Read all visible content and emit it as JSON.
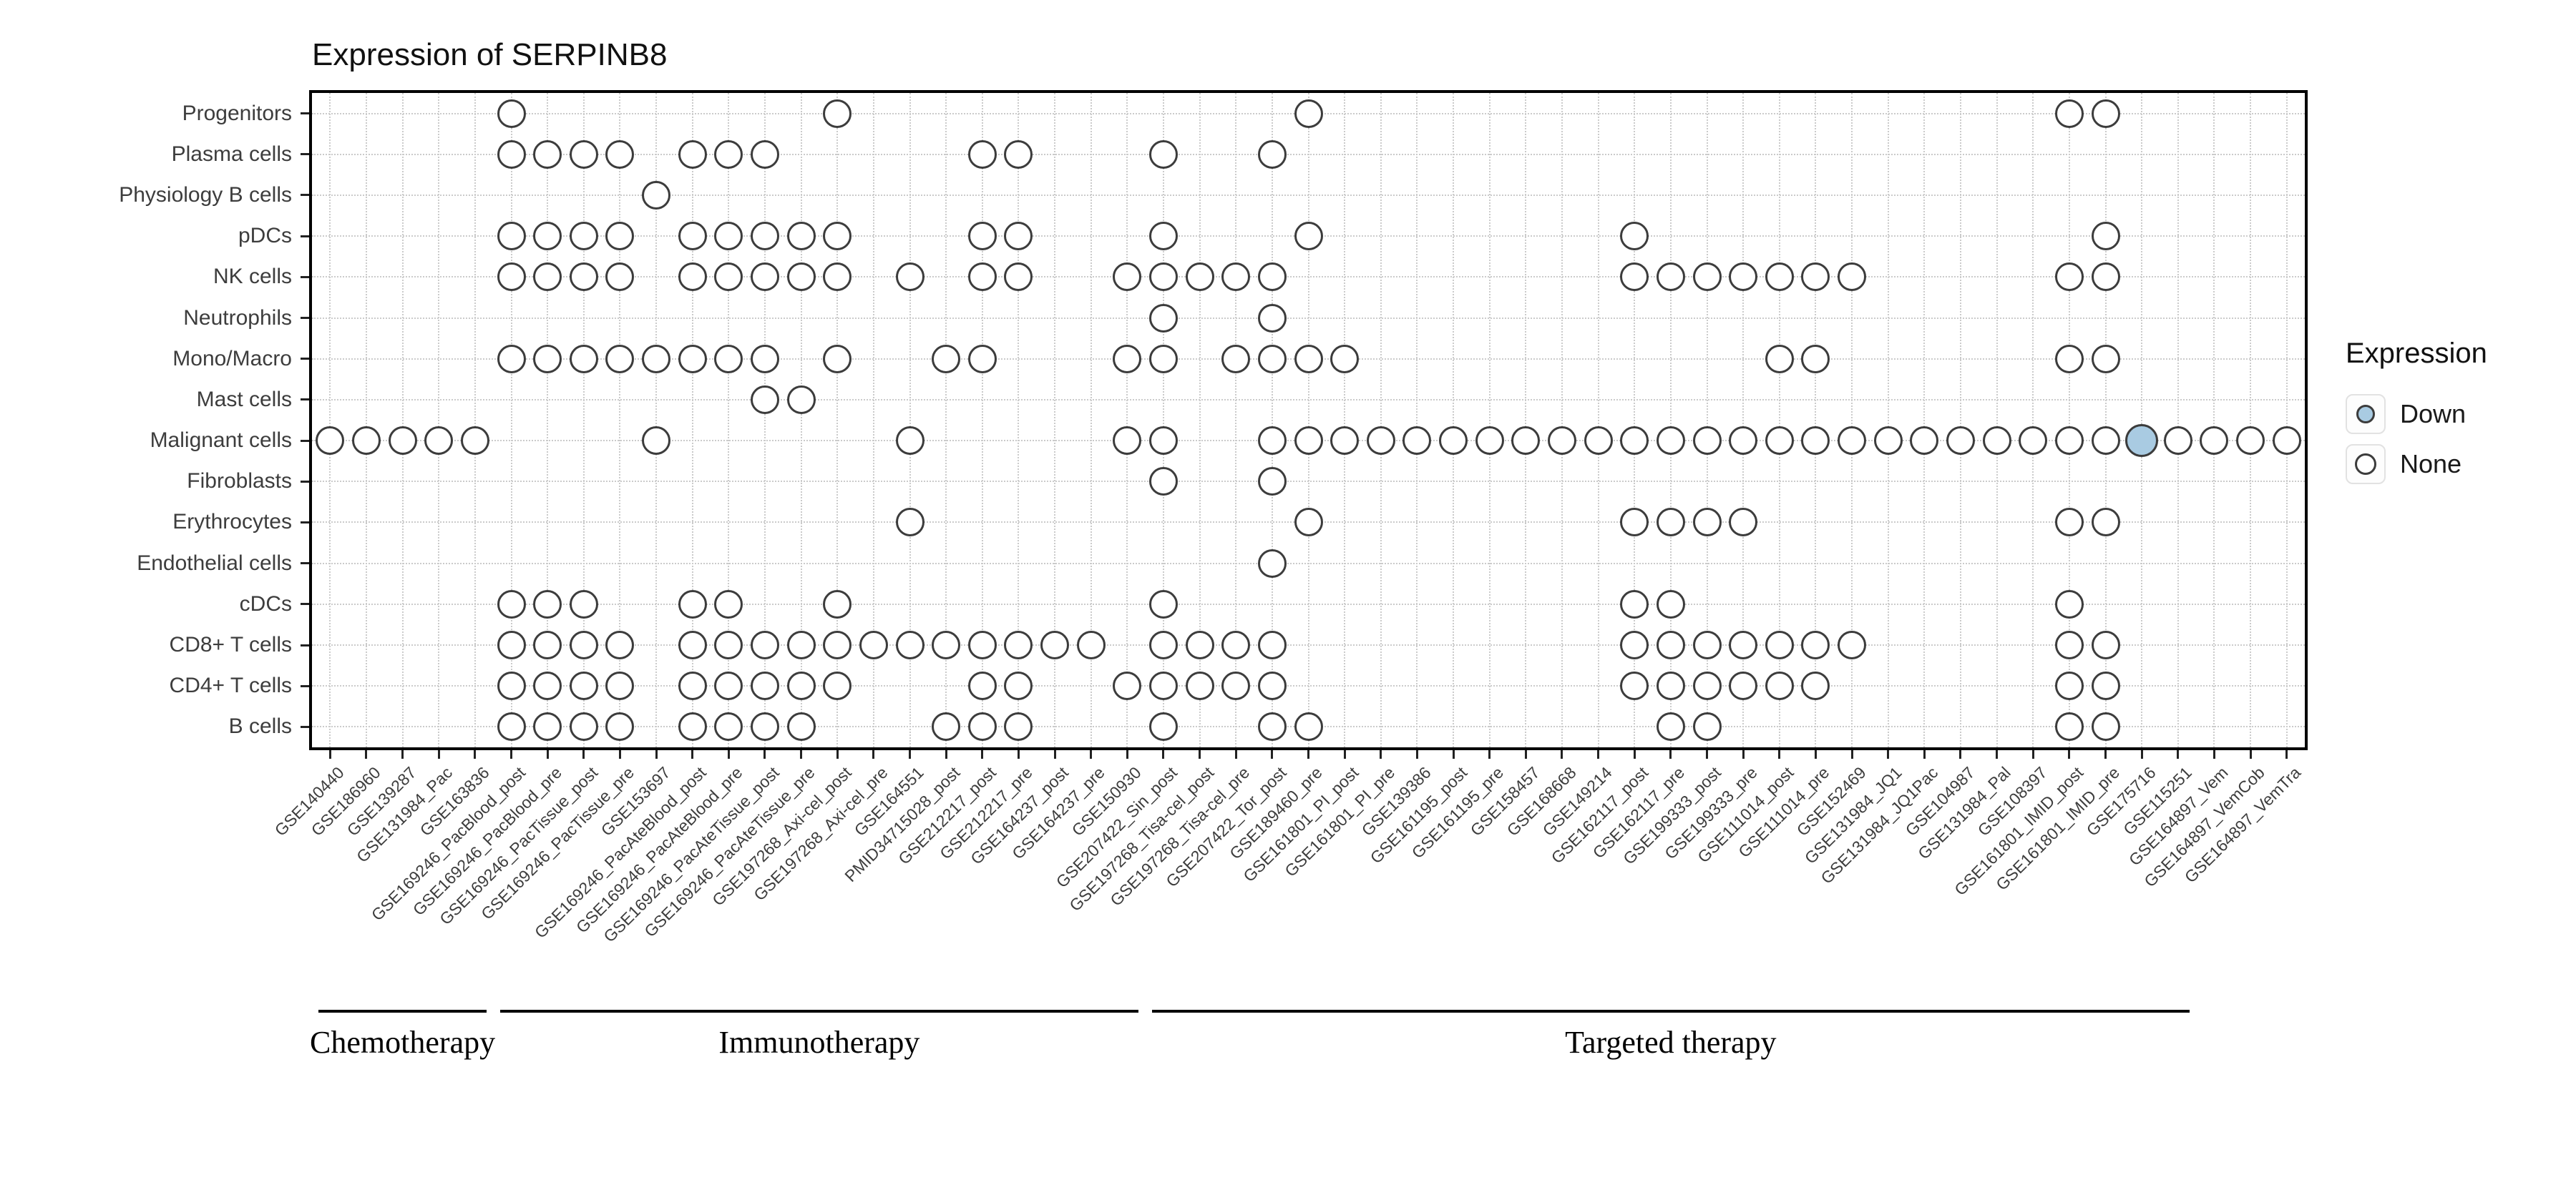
{
  "chart_data": {
    "type": "scatter",
    "title": "Expression of SERPINB8",
    "xlabel": "",
    "ylabel": "",
    "grid": true,
    "rows": [
      "Progenitors",
      "Plasma cells",
      "Physiology B cells",
      "pDCs",
      "NK cells",
      "Neutrophils",
      "Mono/Macro",
      "Mast cells",
      "Malignant cells",
      "Fibroblasts",
      "Erythrocytes",
      "Endothelial cells",
      "cDCs",
      "CD8+ T cells",
      "CD4+ T cells",
      "B cells"
    ],
    "columns": [
      "GSE140440",
      "GSE186960",
      "GSE139287",
      "GSE131984_Pac",
      "GSE163836",
      "GSE169246_PacBlood_post",
      "GSE169246_PacBlood_pre",
      "GSE169246_PacTissue_post",
      "GSE169246_PacTissue_pre",
      "GSE153697",
      "GSE169246_PacAteBlood_post",
      "GSE169246_PacAteBlood_pre",
      "GSE169246_PacAteTissue_post",
      "GSE169246_PacAteTissue_pre",
      "GSE197268_Axi-cel_post",
      "GSE197268_Axi-cel_pre",
      "GSE164551",
      "PMID34715028_post",
      "GSE212217_post",
      "GSE212217_pre",
      "GSE164237_post",
      "GSE164237_pre",
      "GSE150930",
      "GSE207422_Sin_post",
      "GSE197268_Tisa-cel_post",
      "GSE197268_Tisa-cel_pre",
      "GSE207422_Tor_post",
      "GSE189460_pre",
      "GSE161801_PI_post",
      "GSE161801_PI_pre",
      "GSE139386",
      "GSE161195_post",
      "GSE161195_pre",
      "GSE158457",
      "GSE168668",
      "GSE149214",
      "GSE162117_post",
      "GSE162117_pre",
      "GSE199333_post",
      "GSE199333_pre",
      "GSE111014_post",
      "GSE111014_pre",
      "GSE152469",
      "GSE131984_JQ1",
      "GSE131984_JQ1Pac",
      "GSE104987",
      "GSE131984_Pal",
      "GSE108397",
      "GSE161801_IMID_post",
      "GSE161801_IMID_pre",
      "GSE175716",
      "GSE115251",
      "GSE164897_Vem",
      "GSE164897_VemCob",
      "GSE164897_VemTra"
    ],
    "groups": [
      {
        "label": "Chemotherapy",
        "from": 1,
        "to": 5
      },
      {
        "label": "Immunotherapy",
        "from": 6,
        "to": 23
      },
      {
        "label": "Targeted therapy",
        "from": 24,
        "to": 52
      }
    ],
    "legend": {
      "title": "Expression",
      "position": "right",
      "items": [
        {
          "label": "Down",
          "fill": "#A9CBE2"
        },
        {
          "label": "None",
          "fill": "#FFFFFF"
        }
      ]
    },
    "colors": {
      "dot_stroke": "#3C3C3C",
      "grid": "#CBCBCB",
      "axis_text": "#3D3D3D",
      "border": "#000000"
    },
    "cells": {
      "Progenitors": {
        "none": [
          6,
          15,
          28,
          49,
          50
        ],
        "down": []
      },
      "Plasma cells": {
        "none": [
          6,
          7,
          8,
          9,
          11,
          12,
          13,
          19,
          20,
          24,
          27
        ],
        "down": []
      },
      "Physiology B cells": {
        "none": [
          10
        ],
        "down": []
      },
      "pDCs": {
        "none": [
          6,
          7,
          8,
          9,
          11,
          12,
          13,
          14,
          15,
          19,
          20,
          24,
          28,
          37,
          50
        ],
        "down": []
      },
      "NK cells": {
        "none": [
          6,
          7,
          8,
          9,
          11,
          12,
          13,
          14,
          15,
          17,
          19,
          20,
          23,
          24,
          25,
          26,
          27,
          37,
          38,
          39,
          40,
          41,
          42,
          43,
          49,
          50
        ],
        "down": []
      },
      "Neutrophils": {
        "none": [
          24,
          27
        ],
        "down": []
      },
      "Mono/Macro": {
        "none": [
          6,
          7,
          8,
          9,
          10,
          11,
          12,
          13,
          15,
          18,
          19,
          23,
          24,
          26,
          27,
          28,
          29,
          41,
          42,
          49,
          50
        ],
        "down": []
      },
      "Mast cells": {
        "none": [
          13,
          14
        ],
        "down": []
      },
      "Malignant cells": {
        "none": [
          1,
          2,
          3,
          4,
          5,
          10,
          17,
          23,
          24,
          27,
          28,
          29,
          30,
          31,
          32,
          33,
          34,
          35,
          36,
          37,
          38,
          39,
          40,
          41,
          42,
          43,
          44,
          45,
          46,
          47,
          48,
          49,
          50,
          52,
          53,
          54,
          55
        ],
        "down": [
          51
        ]
      },
      "Fibroblasts": {
        "none": [
          24,
          27
        ],
        "down": []
      },
      "Erythrocytes": {
        "none": [
          17,
          28,
          37,
          38,
          39,
          40,
          49,
          50
        ],
        "down": []
      },
      "Endothelial cells": {
        "none": [
          27
        ],
        "down": []
      },
      "cDCs": {
        "none": [
          6,
          7,
          8,
          11,
          12,
          15,
          24,
          37,
          38,
          49
        ],
        "down": []
      },
      "CD8+ T cells": {
        "none": [
          6,
          7,
          8,
          9,
          11,
          12,
          13,
          14,
          15,
          16,
          17,
          18,
          19,
          20,
          21,
          22,
          24,
          25,
          26,
          27,
          37,
          38,
          39,
          40,
          41,
          42,
          43,
          49,
          50
        ],
        "down": []
      },
      "CD4+ T cells": {
        "none": [
          6,
          7,
          8,
          9,
          11,
          12,
          13,
          14,
          15,
          19,
          20,
          23,
          24,
          25,
          26,
          27,
          37,
          38,
          39,
          40,
          41,
          42,
          49,
          50
        ],
        "down": []
      },
      "B cells": {
        "none": [
          6,
          7,
          8,
          9,
          11,
          12,
          13,
          14,
          18,
          19,
          20,
          24,
          27,
          28,
          38,
          39,
          49,
          50
        ],
        "down": []
      }
    }
  }
}
